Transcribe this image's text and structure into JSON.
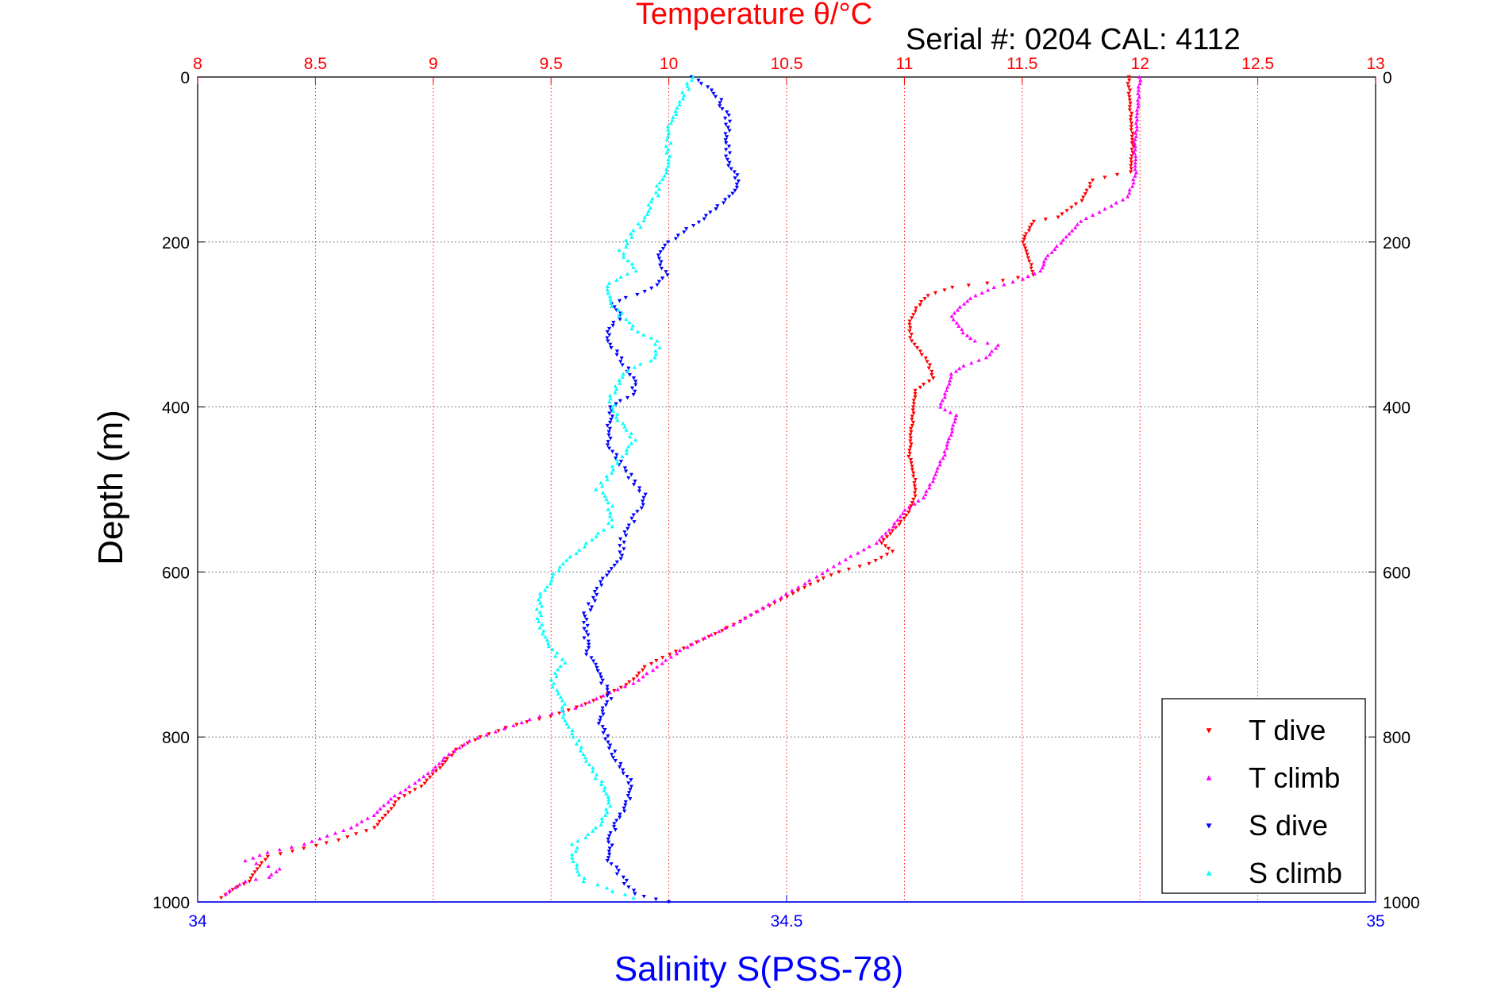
{
  "chart_data": {
    "type": "scatter",
    "title": "Temperature θ/°C",
    "subtitle": "Serial #: 0204  CAL: 4112",
    "xlabel": "Salinity S(PSS-78)",
    "ylabel": "Depth (m)",
    "top_axis": {
      "lim": [
        8,
        13
      ],
      "ticks": [
        8,
        8.5,
        9,
        9.5,
        10,
        10.5,
        11,
        11.5,
        12,
        12.5,
        13
      ],
      "tick_labels": [
        "8",
        "8.5",
        "9",
        "9.5",
        "10",
        "10.5",
        "11",
        "11.5",
        "12",
        "12.5",
        "13"
      ],
      "color": "#ff0000"
    },
    "bottom_axis": {
      "lim": [
        34,
        35
      ],
      "ticks": [
        34,
        34.5,
        35
      ],
      "tick_labels": [
        "34",
        "34.5",
        "35"
      ],
      "color": "#0000ff"
    },
    "y_axis": {
      "lim": [
        0,
        1000
      ],
      "reversed": true,
      "ticks": [
        0,
        200,
        400,
        600,
        800,
        1000
      ],
      "tick_labels": [
        "0",
        "200",
        "400",
        "600",
        "800",
        "1000"
      ]
    },
    "grid": true,
    "legend_position": "bottom-right",
    "series": [
      {
        "name": "T dive",
        "axis": "top",
        "color": "#ff0000",
        "marker": "triangle-down",
        "points": [
          [
            11.95,
            0
          ],
          [
            11.96,
            40
          ],
          [
            11.97,
            80
          ],
          [
            11.96,
            115
          ],
          [
            11.8,
            125
          ],
          [
            11.75,
            150
          ],
          [
            11.65,
            170
          ],
          [
            11.55,
            175
          ],
          [
            11.52,
            190
          ],
          [
            11.5,
            200
          ],
          [
            11.52,
            215
          ],
          [
            11.55,
            240
          ],
          [
            11.35,
            250
          ],
          [
            11.2,
            255
          ],
          [
            11.1,
            265
          ],
          [
            11.05,
            280
          ],
          [
            11.02,
            300
          ],
          [
            11.03,
            320
          ],
          [
            11.1,
            345
          ],
          [
            11.12,
            365
          ],
          [
            11.05,
            380
          ],
          [
            11.04,
            400
          ],
          [
            11.03,
            430
          ],
          [
            11.02,
            460
          ],
          [
            11.04,
            480
          ],
          [
            11.05,
            500
          ],
          [
            11.03,
            520
          ],
          [
            11.0,
            535
          ],
          [
            10.95,
            550
          ],
          [
            10.9,
            565
          ],
          [
            10.95,
            575
          ],
          [
            10.85,
            590
          ],
          [
            10.72,
            600
          ],
          [
            10.6,
            615
          ],
          [
            10.5,
            630
          ],
          [
            10.4,
            645
          ],
          [
            10.3,
            660
          ],
          [
            10.2,
            675
          ],
          [
            10.12,
            685
          ],
          [
            10.0,
            700
          ],
          [
            9.9,
            715
          ],
          [
            9.85,
            730
          ],
          [
            9.8,
            740
          ],
          [
            9.65,
            760
          ],
          [
            9.5,
            775
          ],
          [
            9.35,
            785
          ],
          [
            9.2,
            800
          ],
          [
            9.1,
            815
          ],
          [
            9.05,
            830
          ],
          [
            9.0,
            845
          ],
          [
            8.95,
            860
          ],
          [
            8.85,
            875
          ],
          [
            8.8,
            895
          ],
          [
            8.75,
            910
          ],
          [
            8.6,
            925
          ],
          [
            8.45,
            935
          ],
          [
            8.3,
            945
          ],
          [
            8.25,
            960
          ],
          [
            8.22,
            975
          ],
          [
            8.15,
            985
          ],
          [
            8.1,
            995
          ]
        ]
      },
      {
        "name": "T climb",
        "axis": "top",
        "color": "#ff00ff",
        "marker": "triangle-up",
        "points": [
          [
            12.0,
            0
          ],
          [
            11.99,
            40
          ],
          [
            11.98,
            80
          ],
          [
            11.98,
            120
          ],
          [
            11.95,
            145
          ],
          [
            11.85,
            160
          ],
          [
            11.75,
            175
          ],
          [
            11.7,
            190
          ],
          [
            11.65,
            205
          ],
          [
            11.6,
            220
          ],
          [
            11.58,
            235
          ],
          [
            11.5,
            245
          ],
          [
            11.38,
            255
          ],
          [
            11.3,
            265
          ],
          [
            11.25,
            275
          ],
          [
            11.2,
            290
          ],
          [
            11.25,
            310
          ],
          [
            11.3,
            320
          ],
          [
            11.4,
            325
          ],
          [
            11.35,
            340
          ],
          [
            11.25,
            350
          ],
          [
            11.2,
            360
          ],
          [
            11.18,
            380
          ],
          [
            11.15,
            400
          ],
          [
            11.22,
            410
          ],
          [
            11.2,
            430
          ],
          [
            11.18,
            450
          ],
          [
            11.15,
            470
          ],
          [
            11.12,
            490
          ],
          [
            11.08,
            510
          ],
          [
            11.0,
            525
          ],
          [
            10.95,
            545
          ],
          [
            10.88,
            565
          ],
          [
            10.75,
            585
          ],
          [
            10.6,
            610
          ],
          [
            10.45,
            635
          ],
          [
            10.3,
            660
          ],
          [
            10.15,
            680
          ],
          [
            10.05,
            695
          ],
          [
            9.95,
            715
          ],
          [
            9.85,
            735
          ],
          [
            9.72,
            750
          ],
          [
            9.6,
            765
          ],
          [
            9.45,
            775
          ],
          [
            9.3,
            790
          ],
          [
            9.15,
            805
          ],
          [
            9.05,
            825
          ],
          [
            9.0,
            840
          ],
          [
            8.9,
            860
          ],
          [
            8.82,
            875
          ],
          [
            8.75,
            895
          ],
          [
            8.65,
            910
          ],
          [
            8.55,
            920
          ],
          [
            8.45,
            930
          ],
          [
            8.3,
            940
          ],
          [
            8.2,
            950
          ],
          [
            8.35,
            960
          ],
          [
            8.3,
            970
          ],
          [
            8.2,
            975
          ],
          [
            8.12,
            990
          ]
        ]
      },
      {
        "name": "S dive",
        "axis": "bottom",
        "color": "#0000ff",
        "marker": "triangle-down",
        "points": [
          [
            34.42,
            0
          ],
          [
            34.44,
            20
          ],
          [
            34.45,
            50
          ],
          [
            34.45,
            80
          ],
          [
            34.45,
            100
          ],
          [
            34.46,
            130
          ],
          [
            34.44,
            160
          ],
          [
            34.42,
            180
          ],
          [
            34.4,
            200
          ],
          [
            34.39,
            220
          ],
          [
            34.4,
            240
          ],
          [
            34.38,
            260
          ],
          [
            34.35,
            275
          ],
          [
            34.36,
            290
          ],
          [
            34.35,
            305
          ],
          [
            34.35,
            320
          ],
          [
            34.36,
            345
          ],
          [
            34.37,
            365
          ],
          [
            34.37,
            385
          ],
          [
            34.35,
            400
          ],
          [
            34.35,
            430
          ],
          [
            34.35,
            450
          ],
          [
            34.36,
            470
          ],
          [
            34.37,
            490
          ],
          [
            34.38,
            510
          ],
          [
            34.37,
            535
          ],
          [
            34.36,
            560
          ],
          [
            34.36,
            580
          ],
          [
            34.35,
            600
          ],
          [
            34.34,
            620
          ],
          [
            34.33,
            650
          ],
          [
            34.33,
            680
          ],
          [
            34.33,
            700
          ],
          [
            34.34,
            720
          ],
          [
            34.35,
            750
          ],
          [
            34.34,
            780
          ],
          [
            34.35,
            810
          ],
          [
            34.36,
            840
          ],
          [
            34.37,
            860
          ],
          [
            34.36,
            890
          ],
          [
            34.35,
            920
          ],
          [
            34.35,
            950
          ],
          [
            34.36,
            970
          ],
          [
            34.37,
            990
          ],
          [
            34.4,
            1000
          ]
        ]
      },
      {
        "name": "S climb",
        "axis": "bottom",
        "color": "#00ffff",
        "marker": "triangle-up",
        "points": [
          [
            34.42,
            0
          ],
          [
            34.41,
            30
          ],
          [
            34.4,
            60
          ],
          [
            34.4,
            100
          ],
          [
            34.39,
            140
          ],
          [
            34.38,
            170
          ],
          [
            34.37,
            190
          ],
          [
            34.36,
            210
          ],
          [
            34.37,
            235
          ],
          [
            34.35,
            250
          ],
          [
            34.35,
            270
          ],
          [
            34.36,
            290
          ],
          [
            34.37,
            305
          ],
          [
            34.39,
            320
          ],
          [
            34.39,
            340
          ],
          [
            34.36,
            360
          ],
          [
            34.35,
            390
          ],
          [
            34.36,
            420
          ],
          [
            34.37,
            440
          ],
          [
            34.36,
            460
          ],
          [
            34.35,
            480
          ],
          [
            34.34,
            500
          ],
          [
            34.35,
            520
          ],
          [
            34.35,
            545
          ],
          [
            34.33,
            565
          ],
          [
            34.31,
            590
          ],
          [
            34.3,
            610
          ],
          [
            34.29,
            630
          ],
          [
            34.29,
            660
          ],
          [
            34.3,
            690
          ],
          [
            34.31,
            710
          ],
          [
            34.3,
            735
          ],
          [
            34.31,
            760
          ],
          [
            34.31,
            780
          ],
          [
            34.32,
            800
          ],
          [
            34.33,
            825
          ],
          [
            34.34,
            850
          ],
          [
            34.35,
            880
          ],
          [
            34.34,
            910
          ],
          [
            34.32,
            930
          ],
          [
            34.32,
            955
          ],
          [
            34.33,
            975
          ],
          [
            34.37,
            995
          ]
        ]
      }
    ]
  }
}
